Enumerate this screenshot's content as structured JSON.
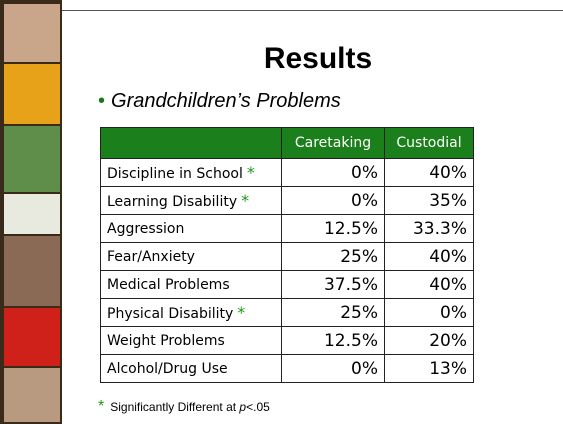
{
  "title": "Results",
  "bullet": "Grandchildren’s Problems",
  "table": {
    "header": [
      "Caretaking",
      "Custodial"
    ],
    "rows": [
      {
        "label": "Discipline in School",
        "star": "*",
        "values": [
          "0%",
          "40%"
        ]
      },
      {
        "label": "Learning Disability",
        "star": "*",
        "values": [
          "0%",
          "35%"
        ]
      },
      {
        "label": "Aggression",
        "values": [
          "12.5%",
          "33.3%"
        ]
      },
      {
        "label": "Fear/Anxiety",
        "values": [
          "25%",
          "40%"
        ]
      },
      {
        "label": "Medical Problems",
        "values": [
          "37.5%",
          "40%"
        ]
      },
      {
        "label": "Physical Disability",
        "star": "*",
        "values": [
          "25%",
          "0%"
        ]
      },
      {
        "label": "Weight Problems",
        "values": [
          "12.5%",
          "20%"
        ]
      },
      {
        "label": "Alcohol/Drug Use",
        "values": [
          "0%",
          "13%"
        ]
      }
    ]
  },
  "footnote": {
    "star": "*",
    "text": "Significantly Different at ",
    "p": "p",
    "threshold": "<.05"
  }
}
